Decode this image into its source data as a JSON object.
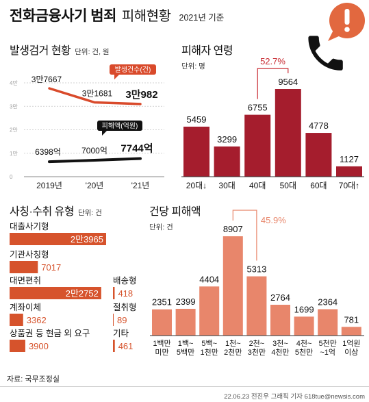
{
  "header": {
    "title_main": "전화금융사기 범죄",
    "title_sub": "피해현황",
    "date_note": "2021년 기준",
    "icon": "phone-alert-icon"
  },
  "colors": {
    "line_cases": "#d94a2b",
    "line_damage": "#111111",
    "age_bars": "#a51d2d",
    "type_bars": "#d6532c",
    "per_case_bars": "#e8866b",
    "age_annotation": "#c8282f",
    "per_case_annotation": "#e8866b",
    "alert_bubble": "#e2683f"
  },
  "chart_data": [
    {
      "type": "line",
      "title": "발생검거 현황",
      "unit": "단위: 건, 원",
      "categories": [
        "2019년",
        "'20년",
        "'21년"
      ],
      "ylim": [
        0,
        40000
      ],
      "y_ticks": [
        {
          "value": 40000,
          "label": "4만"
        },
        {
          "value": 30000,
          "label": "3만"
        },
        {
          "value": 20000,
          "label": "2만"
        },
        {
          "value": 10000,
          "label": "1만"
        },
        {
          "value": 0,
          "label": "0"
        }
      ],
      "grid": true,
      "series": [
        {
          "name": "발생건수(건)",
          "values": [
            37667,
            31681,
            30982
          ],
          "labels": [
            "3만7667",
            "3만1681",
            "3만982"
          ]
        },
        {
          "name": "피해액(억원)",
          "values": [
            6398,
            7000,
            7744
          ],
          "labels": [
            "6398억",
            "7000억",
            "7744억"
          ]
        }
      ]
    },
    {
      "type": "bar",
      "title": "피해자 연령",
      "unit": "단위: 명",
      "categories": [
        "20대↓",
        "30대",
        "40대",
        "50대",
        "60대",
        "70대↑"
      ],
      "values": [
        5459,
        3299,
        6755,
        9564,
        4778,
        1127
      ],
      "annotation": {
        "text": "52.7%",
        "between": [
          "40대",
          "50대"
        ]
      }
    },
    {
      "type": "bar",
      "orientation": "horizontal",
      "title": "사칭·수취 유형",
      "unit": "단위: 건",
      "categories": [
        "대출사기형",
        "기관사칭형",
        "대면편취",
        "계좌이체",
        "상품권 등 현금 외 요구",
        "배송형",
        "절취형",
        "기타"
      ],
      "values": [
        23965,
        7017,
        22752,
        3362,
        3900,
        418,
        89,
        461
      ],
      "value_labels": [
        "2만3965",
        "7017",
        "2만2752",
        "3362",
        "3900",
        "418",
        "89",
        "461"
      ]
    },
    {
      "type": "bar",
      "title": "건당 피해액",
      "unit": "단위: 건",
      "categories": [
        [
          "1백만",
          "미만"
        ],
        [
          "1백~",
          "5백만"
        ],
        [
          "5백~",
          "1천만"
        ],
        [
          "1천~",
          "2천만"
        ],
        [
          "2천~",
          "3천만"
        ],
        [
          "3천~",
          "4천만"
        ],
        [
          "4천~",
          "5천만"
        ],
        [
          "5천만",
          "~1억"
        ],
        [
          "1억원",
          "이상"
        ]
      ],
      "values": [
        2351,
        2399,
        4404,
        8907,
        5313,
        2764,
        1699,
        2364,
        781
      ],
      "annotation": {
        "text": "45.9%",
        "between": [
          "1천~2천만",
          "2천~3천만"
        ]
      }
    }
  ],
  "footer": {
    "source": "자료: 국무조정실",
    "credit": "22.06.23 전진우 그래픽 기자 618tue@newsis.com"
  }
}
